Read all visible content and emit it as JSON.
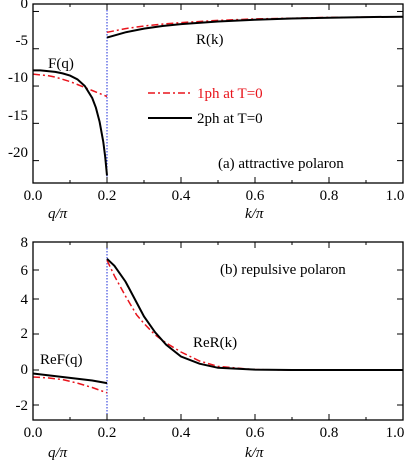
{
  "chart_data": [
    {
      "type": "line",
      "panel_label": "(a) attractive polaron",
      "x_tick_labels": [
        "0.0",
        "0.2",
        "0.4",
        "0.6",
        "0.8",
        "1.0"
      ],
      "y_tick_labels": [
        "0",
        "-5",
        "-10",
        "-15",
        "-20"
      ],
      "xlim": [
        0,
        1.0
      ],
      "ylim": [
        -23,
        1
      ],
      "y_ticks": [
        0,
        -5,
        -10,
        -15,
        -20
      ],
      "x_ticks": [
        0,
        0.2,
        0.4,
        0.6,
        0.8,
        1.0
      ],
      "divider_x": 0.2,
      "xlabel_left": "q/π",
      "xlabel_right": "k/π",
      "annotations": [
        "F(q)",
        "R(k)"
      ],
      "legend": {
        "position": "middle-left",
        "entries": [
          {
            "label": "1ph at T=0",
            "color": "#e8141c",
            "style": "dash-dot"
          },
          {
            "label": "2ph at T=0",
            "color": "#000000",
            "style": "solid"
          }
        ]
      },
      "series": [
        {
          "name": "1ph at T=0",
          "color": "#e8141c",
          "style": "dash-dot",
          "segments": [
            {
              "x": [
                0.0,
                0.02,
                0.04,
                0.06,
                0.08,
                0.1,
                0.12,
                0.14,
                0.16,
                0.18,
                0.2
              ],
              "y": [
                -8.4,
                -8.5,
                -8.6,
                -8.8,
                -9.1,
                -9.4,
                -9.8,
                -10.2,
                -10.6,
                -11.0,
                -11.4
              ]
            },
            {
              "x": [
                0.2,
                0.25,
                0.3,
                0.35,
                0.4,
                0.5,
                0.6,
                0.7,
                0.8,
                0.9,
                1.0
              ],
              "y": [
                -2.8,
                -2.3,
                -1.95,
                -1.7,
                -1.5,
                -1.2,
                -1.0,
                -0.9,
                -0.8,
                -0.75,
                -0.7
              ]
            }
          ]
        },
        {
          "name": "2ph at T=0",
          "color": "#000000",
          "style": "solid",
          "segments": [
            {
              "x": [
                0.0,
                0.02,
                0.04,
                0.06,
                0.08,
                0.1,
                0.12,
                0.14,
                0.16,
                0.17,
                0.18,
                0.19,
                0.195,
                0.2
              ],
              "y": [
                -7.9,
                -7.9,
                -8.0,
                -8.1,
                -8.3,
                -8.6,
                -9.1,
                -10.0,
                -11.6,
                -12.9,
                -14.8,
                -17.5,
                -19.5,
                -22.0
              ]
            },
            {
              "x": [
                0.2,
                0.25,
                0.3,
                0.35,
                0.4,
                0.5,
                0.6,
                0.7,
                0.8,
                0.9,
                1.0
              ],
              "y": [
                -3.5,
                -2.8,
                -2.3,
                -1.95,
                -1.7,
                -1.35,
                -1.1,
                -0.95,
                -0.85,
                -0.75,
                -0.7
              ]
            }
          ]
        }
      ]
    },
    {
      "type": "line",
      "panel_label": "(b) repulsive polaron",
      "x_tick_labels": [
        "0.0",
        "0.2",
        "0.4",
        "0.6",
        "0.8",
        "1.0"
      ],
      "y_tick_labels": [
        "8",
        "6",
        "4",
        "2",
        "0",
        "-2"
      ],
      "xlim": [
        0,
        1.0
      ],
      "ylim": [
        -3,
        8
      ],
      "y_ticks": [
        8,
        6,
        4,
        2,
        0,
        -2
      ],
      "x_ticks": [
        0,
        0.2,
        0.4,
        0.6,
        0.8,
        1.0
      ],
      "divider_x": 0.2,
      "xlabel_left": "q/π",
      "xlabel_right": "k/π",
      "annotations": [
        "ReF(q)",
        "ReR(k)"
      ],
      "series": [
        {
          "name": "1ph at T=0",
          "color": "#e8141c",
          "style": "dash-dot",
          "segments": [
            {
              "x": [
                0.0,
                0.04,
                0.08,
                0.12,
                0.16,
                0.2
              ],
              "y": [
                -0.4,
                -0.45,
                -0.55,
                -0.75,
                -1.0,
                -1.3
              ]
            },
            {
              "x": [
                0.2,
                0.22,
                0.25,
                0.28,
                0.3,
                0.33,
                0.36,
                0.4,
                0.45,
                0.5,
                0.6,
                0.7,
                0.8,
                0.9,
                1.0
              ],
              "y": [
                6.7,
                5.6,
                4.2,
                3.1,
                2.6,
                1.95,
                1.5,
                1.0,
                0.5,
                0.2,
                0.02,
                0.0,
                0.0,
                0.0,
                0.0
              ]
            }
          ]
        },
        {
          "name": "2ph at T=0",
          "color": "#000000",
          "style": "solid",
          "segments": [
            {
              "x": [
                0.0,
                0.04,
                0.08,
                0.12,
                0.16,
                0.2
              ],
              "y": [
                -0.2,
                -0.3,
                -0.4,
                -0.5,
                -0.6,
                -0.75
              ]
            },
            {
              "x": [
                0.2,
                0.22,
                0.25,
                0.28,
                0.3,
                0.33,
                0.36,
                0.4,
                0.45,
                0.5,
                0.6,
                0.7,
                0.8,
                0.9,
                1.0
              ],
              "y": [
                6.8,
                6.3,
                5.2,
                3.8,
                3.0,
                2.1,
                1.4,
                0.75,
                0.35,
                0.12,
                0.02,
                0.0,
                0.0,
                0.0,
                0.0
              ]
            }
          ]
        }
      ]
    }
  ]
}
